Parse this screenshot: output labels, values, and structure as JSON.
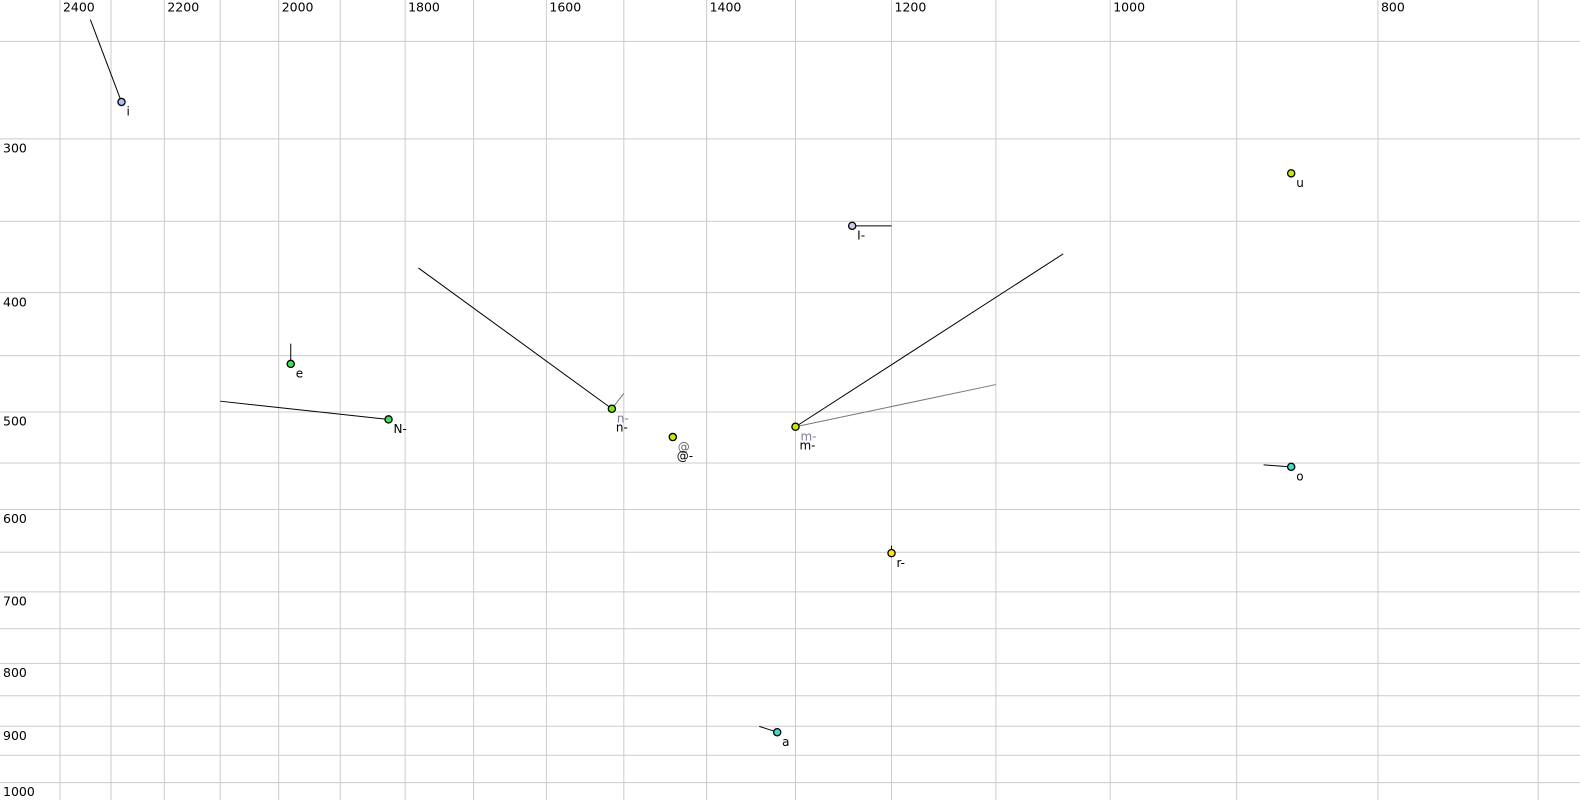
{
  "chart_data": {
    "type": "scatter",
    "title": "",
    "xlabel": "",
    "ylabel": "",
    "description": "Vowel formant plot: F2 in Hz on top axis (log scale, decreasing left to right), F1 in Hz on left axis (log scale, increasing downward). Phone category points with formant trajectory lines.",
    "x_axis": {
      "scale": "log",
      "unit": "Hz",
      "left_hz": 2523,
      "right_hz": 676,
      "tick_labels_hz": [
        2400,
        2200,
        2000,
        1800,
        1600,
        1400,
        1200,
        1000,
        800
      ],
      "gridlines_hz": [
        2400,
        2300,
        2200,
        2100,
        2000,
        1900,
        1800,
        1700,
        1600,
        1500,
        1400,
        1300,
        1200,
        1100,
        1000,
        900,
        800,
        700
      ]
    },
    "y_axis": {
      "scale": "log",
      "unit": "Hz",
      "top_hz": 231.4,
      "bottom_hz": 1033,
      "tick_labels_hz": [
        300,
        400,
        500,
        600,
        700,
        800,
        900,
        1000
      ],
      "gridlines_hz": [
        250,
        300,
        350,
        400,
        450,
        500,
        550,
        600,
        650,
        700,
        750,
        800,
        850,
        900,
        950,
        1000
      ]
    },
    "points": [
      {
        "f2_hz": 2280,
        "f1_hz": 280,
        "fill": "#a3c3ee",
        "labels": [
          {
            "text": "i",
            "color": "#000000"
          }
        ],
        "trajectories": [
          {
            "f2_hz": 2340,
            "f1_hz": 240,
            "color": "#000000"
          }
        ]
      },
      {
        "f2_hz": 860,
        "f1_hz": 320,
        "fill": "#c9e802",
        "labels": [
          {
            "text": "u",
            "color": "#000000"
          }
        ],
        "trajectories": []
      },
      {
        "f2_hz": 1240,
        "f1_hz": 353,
        "fill": "#c9c9ec",
        "labels": [
          {
            "text": "I-",
            "color": "#000000"
          }
        ],
        "trajectories": [
          {
            "f2_hz": 1200,
            "f1_hz": 353,
            "color": "#000000"
          }
        ]
      },
      {
        "f2_hz": 1980,
        "f1_hz": 457,
        "fill": "#44dd55",
        "labels": [
          {
            "text": "e",
            "color": "#000000"
          }
        ],
        "trajectories": [
          {
            "f2_hz": 1980,
            "f1_hz": 440,
            "color": "#000000"
          }
        ]
      },
      {
        "f2_hz": 1825,
        "f1_hz": 507,
        "fill": "#44dd55",
        "labels": [
          {
            "text": "N-",
            "color": "#000000"
          }
        ],
        "trajectories": [
          {
            "f2_hz": 2100,
            "f1_hz": 490,
            "color": "#000000"
          }
        ]
      },
      {
        "f2_hz": 1515,
        "f1_hz": 497,
        "fill": "#77e41c",
        "labels": [
          {
            "text": "n-",
            "color": "#7d7d99"
          },
          {
            "text": "n-",
            "color": "#000000"
          }
        ],
        "trajectories": [
          {
            "f2_hz": 1780,
            "f1_hz": 382,
            "color": "#000000"
          },
          {
            "f2_hz": 1500,
            "f1_hz": 483,
            "color": "#777777"
          }
        ]
      },
      {
        "f2_hz": 1440,
        "f1_hz": 524,
        "fill": "#c9e802",
        "labels": [
          {
            "text": "@",
            "color": "#666666"
          },
          {
            "text": "@-",
            "color": "#000000"
          }
        ],
        "trajectories": []
      },
      {
        "f2_hz": 1300,
        "f1_hz": 514,
        "fill": "#c9e802",
        "labels": [
          {
            "text": "m-",
            "color": "#7d7d99"
          },
          {
            "text": "m-",
            "color": "#000000"
          }
        ],
        "trajectories": [
          {
            "f2_hz": 1040,
            "f1_hz": 372,
            "color": "#000000"
          },
          {
            "f2_hz": 1100,
            "f1_hz": 475,
            "color": "#777777"
          }
        ]
      },
      {
        "f2_hz": 860,
        "f1_hz": 554,
        "fill": "#41d9c8",
        "labels": [
          {
            "text": "o",
            "color": "#000000"
          }
        ],
        "trajectories": [
          {
            "f2_hz": 880,
            "f1_hz": 552,
            "color": "#000000"
          }
        ]
      },
      {
        "f2_hz": 1200,
        "f1_hz": 651,
        "fill": "#ffe414",
        "labels": [
          {
            "text": "r-",
            "color": "#000000"
          }
        ],
        "trajectories": [
          {
            "f2_hz": 1200,
            "f1_hz": 642,
            "color": "#000000"
          }
        ]
      },
      {
        "f2_hz": 1320,
        "f1_hz": 910,
        "fill": "#41d9c8",
        "labels": [
          {
            "text": "a",
            "color": "#000000"
          }
        ],
        "trajectories": [
          {
            "f2_hz": 1340,
            "f1_hz": 900,
            "color": "#000000"
          }
        ]
      }
    ],
    "legend": null,
    "grid": true,
    "style": {
      "background": "#ffffff",
      "grid_color": "#cccccc",
      "dot_stroke": "#000000",
      "tick_label_color": "#000000",
      "tick_font_px": 12.5,
      "point_label_font_px": 12,
      "dot_radius_px": 3.6
    }
  }
}
